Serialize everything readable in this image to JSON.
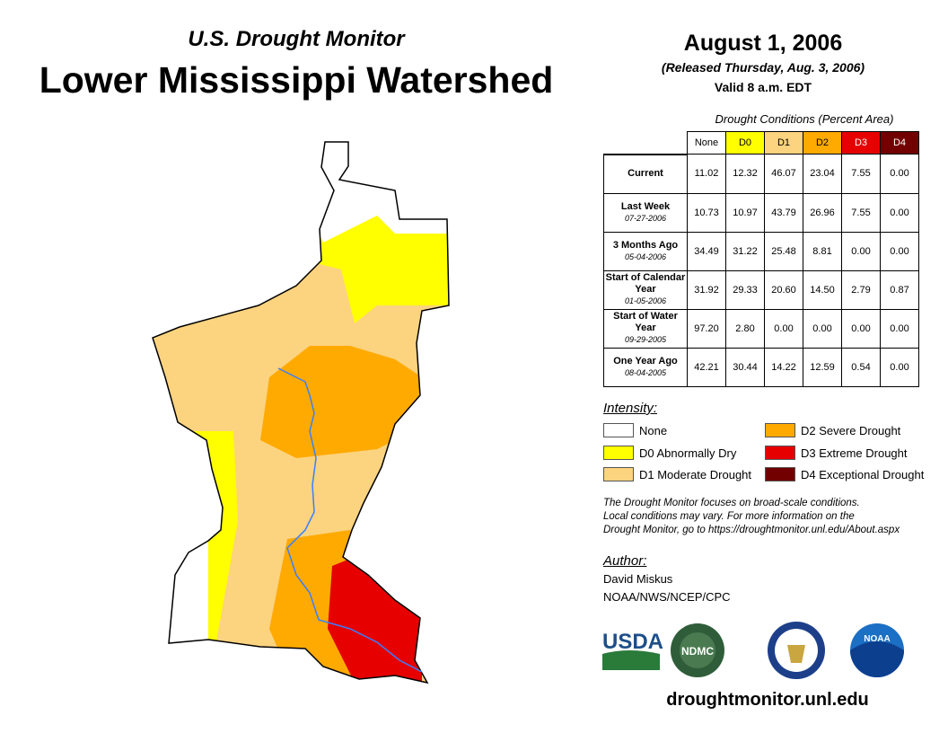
{
  "header": {
    "subtitle": "U.S. Drought Monitor",
    "title": "Lower Mississippi Watershed",
    "date": "August 1, 2006",
    "released": "(Released Thursday, Aug. 3, 2006)",
    "valid": "Valid 8 a.m. EDT"
  },
  "table": {
    "caption": "Drought Conditions (Percent Area)",
    "columns": [
      "None",
      "D0",
      "D1",
      "D2",
      "D3",
      "D4"
    ],
    "column_colors": [
      "#ffffff",
      "#ffff00",
      "#fcd37f",
      "#ffaa00",
      "#e60000",
      "#730000"
    ],
    "rows": [
      {
        "label": "Current",
        "date": "",
        "values": [
          "11.02",
          "12.32",
          "46.07",
          "23.04",
          "7.55",
          "0.00"
        ]
      },
      {
        "label": "Last Week",
        "date": "07-27-2006",
        "values": [
          "10.73",
          "10.97",
          "43.79",
          "26.96",
          "7.55",
          "0.00"
        ]
      },
      {
        "label": "3 Months Ago",
        "date": "05-04-2006",
        "values": [
          "34.49",
          "31.22",
          "25.48",
          "8.81",
          "0.00",
          "0.00"
        ]
      },
      {
        "label": "Start of Calendar Year",
        "date": "01-05-2006",
        "values": [
          "31.92",
          "29.33",
          "20.60",
          "14.50",
          "2.79",
          "0.87"
        ]
      },
      {
        "label": "Start of Water Year",
        "date": "09-29-2005",
        "values": [
          "97.20",
          "2.80",
          "0.00",
          "0.00",
          "0.00",
          "0.00"
        ]
      },
      {
        "label": "One Year Ago",
        "date": "08-04-2005",
        "values": [
          "42.21",
          "30.44",
          "14.22",
          "12.59",
          "0.54",
          "0.00"
        ]
      }
    ]
  },
  "legend": {
    "title": "Intensity:",
    "items": [
      {
        "label": "None",
        "color": "#ffffff"
      },
      {
        "label": "D0 Abnormally Dry",
        "color": "#ffff00"
      },
      {
        "label": "D1 Moderate Drought",
        "color": "#fcd37f"
      },
      {
        "label": "D2 Severe Drought",
        "color": "#ffaa00"
      },
      {
        "label": "D3 Extreme Drought",
        "color": "#e60000"
      },
      {
        "label": "D4 Exceptional Drought",
        "color": "#730000"
      }
    ]
  },
  "note": [
    "The Drought Monitor focuses on broad-scale conditions.",
    "Local conditions may vary. For more information on the",
    "Drought Monitor, go to https://droughtmonitor.unl.edu/About.aspx"
  ],
  "author": {
    "title": "Author:",
    "name": "David Miskus",
    "org": "NOAA/NWS/NCEP/CPC"
  },
  "logos": {
    "usda": "USDA",
    "ndmc": "NDMC",
    "noaa": "NOAA"
  },
  "footer_url": "droughtmonitor.unl.edu"
}
